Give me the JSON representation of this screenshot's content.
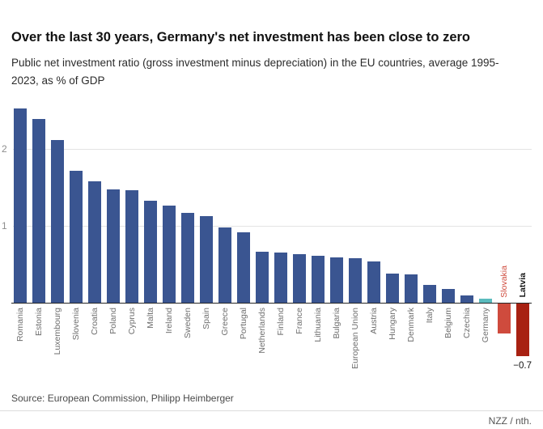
{
  "header": {
    "title": "Over the last 30 years, Germany's net investment has been close to zero",
    "subtitle": "Public net investment ratio (gross investment minus depreciation) in the EU countries, average 1995-\n2023, as % of GDP"
  },
  "footer": {
    "source": "Source: European Commission, Philipp Heimberger",
    "credit": "NZZ / nth."
  },
  "chart_data": {
    "type": "bar",
    "title": "Over the last 30 years, Germany's net investment has been close to zero",
    "subtitle": "Public net investment ratio (gross investment minus depreciation) in the EU countries, average 1995-2023, as % of GDP",
    "xlabel": "",
    "ylabel": "% of GDP",
    "ylim": [
      -0.8,
      2.6
    ],
    "yticks": [
      1,
      2
    ],
    "grid": "horizontal",
    "legend": "none",
    "categories": [
      "Romania",
      "Estonia",
      "Luxembourg",
      "Slovenia",
      "Croatia",
      "Poland",
      "Cyprus",
      "Malta",
      "Ireland",
      "Sweden",
      "Spain",
      "Greece",
      "Portugal",
      "Netherlands",
      "Finland",
      "France",
      "Lithuania",
      "Bulgaria",
      "European Union",
      "Austria",
      "Hungary",
      "Denmark",
      "Italy",
      "Belgium",
      "Czechia",
      "Germany",
      "Slovakia",
      "Latvia"
    ],
    "values": [
      2.52,
      2.39,
      2.11,
      1.71,
      1.58,
      1.47,
      1.46,
      1.32,
      1.26,
      1.16,
      1.12,
      0.98,
      0.91,
      0.66,
      0.65,
      0.63,
      0.61,
      0.59,
      0.58,
      0.53,
      0.38,
      0.36,
      0.23,
      0.18,
      0.09,
      0.05,
      -0.4,
      -0.7
    ],
    "bar_colors": [
      "default",
      "default",
      "default",
      "default",
      "default",
      "default",
      "default",
      "default",
      "default",
      "default",
      "default",
      "default",
      "default",
      "default",
      "default",
      "default",
      "default",
      "default",
      "default",
      "default",
      "default",
      "default",
      "default",
      "default",
      "default",
      "highlight",
      "negative",
      "negative_dark"
    ],
    "colors": {
      "default": "#3a5591",
      "highlight": "#5bbcbe",
      "negative": "#cf4b3d",
      "negative_dark": "#a82112",
      "grid": "#e4e4e4",
      "axis": "#262626",
      "tick_text": "#8e8e8e",
      "label_text": "#6e6e6e"
    },
    "label_styles": {
      "Slovakia": {
        "color": "#cf4b3d",
        "bold": false
      },
      "Latvia": {
        "color": "#121212",
        "bold": true
      }
    },
    "annotations": [
      {
        "category": "Latvia",
        "text": "−0.7"
      }
    ]
  }
}
